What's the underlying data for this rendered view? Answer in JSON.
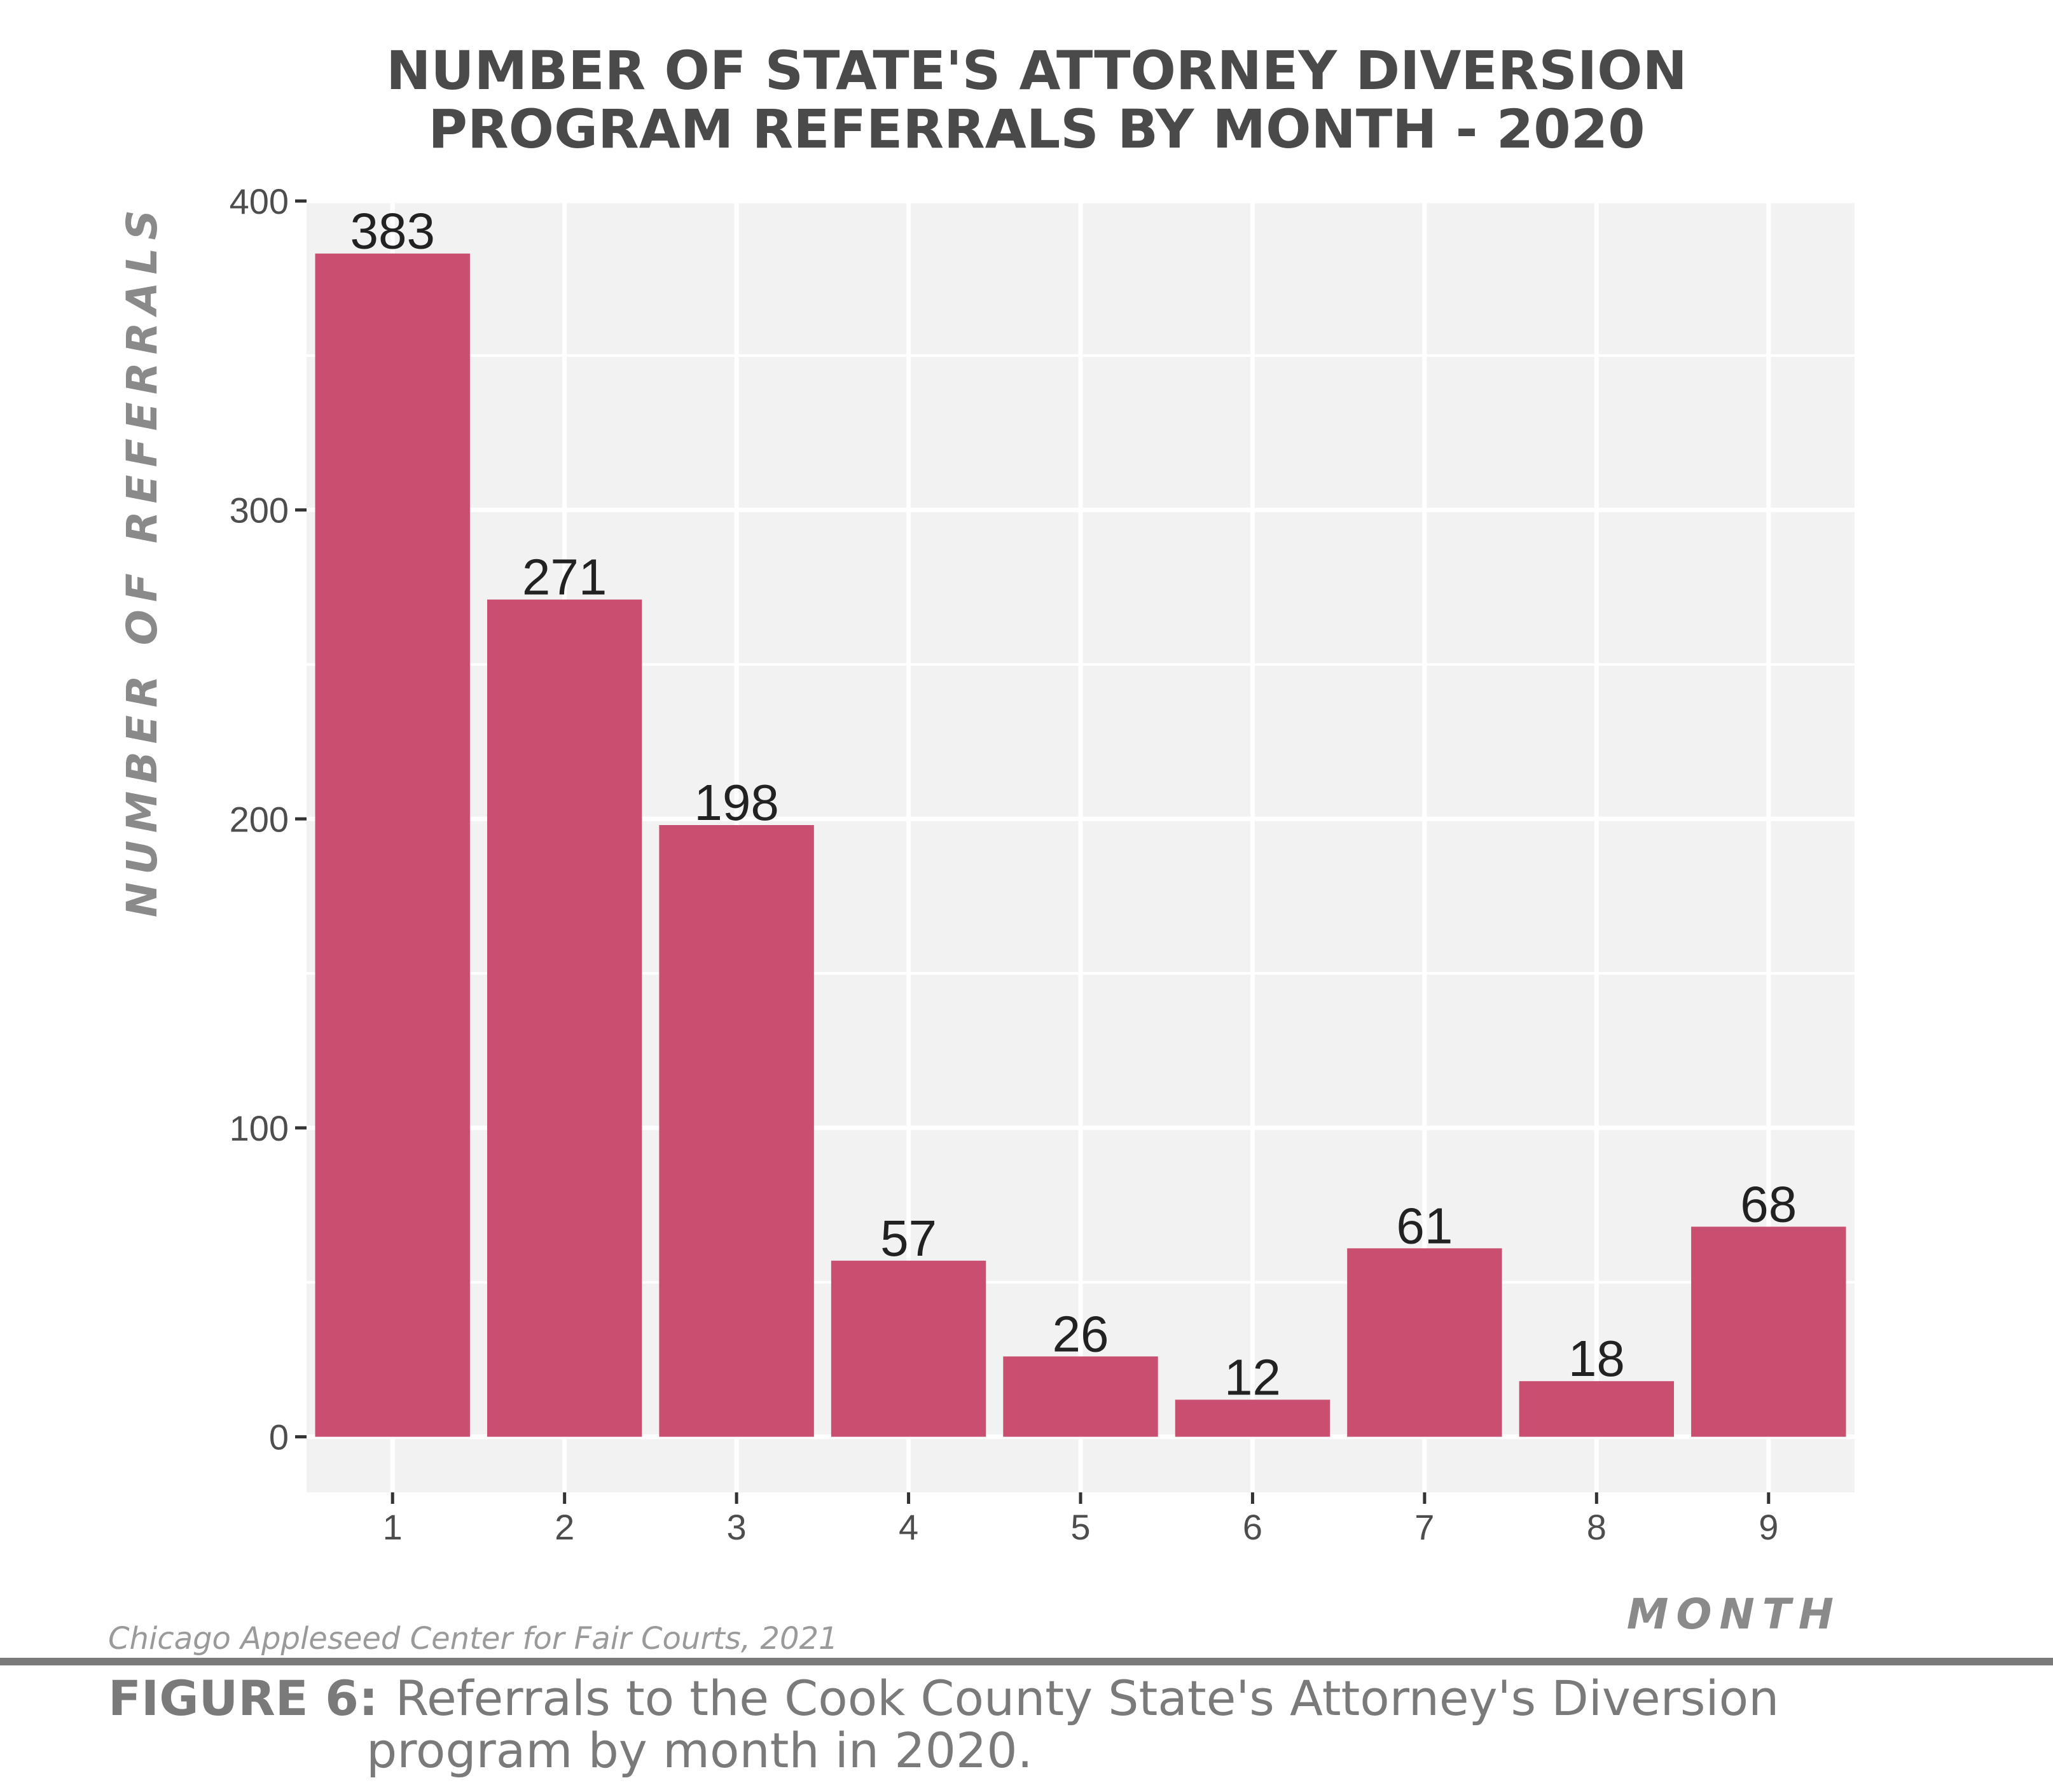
{
  "chart_data": {
    "type": "bar",
    "title_lines": [
      "NUMBER OF STATE'S ATTORNEY DIVERSION",
      "PROGRAM REFERRALS BY MONTH - 2020"
    ],
    "xlabel": "MONTH",
    "ylabel": "NUMBER OF REFERRALS",
    "categories": [
      "1",
      "2",
      "3",
      "4",
      "5",
      "6",
      "7",
      "8",
      "9"
    ],
    "values": [
      383,
      271,
      198,
      57,
      26,
      12,
      61,
      18,
      68
    ],
    "data_labels": [
      "383",
      "271",
      "198",
      "57",
      "26",
      "12",
      "61",
      "18",
      "68"
    ],
    "yticks": [
      0,
      100,
      200,
      300,
      400
    ],
    "ylim": [
      -18,
      400
    ],
    "grid": true,
    "bar_color": "#c94f70",
    "panel_color": "#f2f2f2"
  },
  "source": "Chicago Appleseed Center for Fair Courts, 2021",
  "caption": {
    "label": "FIGURE 6:",
    "line1": "Referrals to the Cook County State's Attorney's Diversion",
    "line2": "program by month in 2020."
  }
}
